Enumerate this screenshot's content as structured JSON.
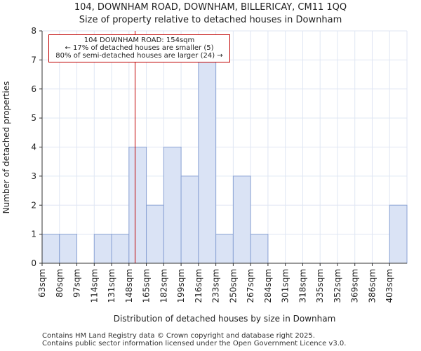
{
  "title_line1": "104, DOWNHAM ROAD, DOWNHAM, BILLERICAY, CM11 1QQ",
  "title_line2": "Size of property relative to detached houses in Downham",
  "annotation": {
    "line1": "104 DOWNHAM ROAD: 154sqm",
    "line2": "← 17% of detached houses are smaller (5)",
    "line3": "80% of semi-detached houses are larger (24) →"
  },
  "footer": {
    "line1": "Contains HM Land Registry data © Crown copyright and database right 2025.",
    "line2": "Contains public sector information licensed under the Open Government Licence v3.0."
  },
  "colors": {
    "bar_fill": "#dae3f5",
    "bar_edge": "#8aa2d4",
    "marker": "#c00000",
    "grid": "#dfe6f3"
  },
  "chart_data": {
    "type": "bar",
    "title": "Size of property relative to detached houses in Downham",
    "xlabel": "Distribution of detached houses by size in Downham",
    "ylabel": "Number of detached properties",
    "categories": [
      "63sqm",
      "80sqm",
      "97sqm",
      "114sqm",
      "131sqm",
      "148sqm",
      "165sqm",
      "182sqm",
      "199sqm",
      "216sqm",
      "233sqm",
      "250sqm",
      "267sqm",
      "284sqm",
      "301sqm",
      "318sqm",
      "335sqm",
      "352sqm",
      "369sqm",
      "386sqm",
      "403sqm"
    ],
    "bin_edges": [
      63,
      80,
      97,
      114,
      131,
      148,
      165,
      182,
      199,
      216,
      233,
      250,
      267,
      284,
      301,
      318,
      335,
      352,
      369,
      386,
      403,
      420
    ],
    "values": [
      1,
      1,
      0,
      1,
      1,
      4,
      2,
      4,
      3,
      7,
      1,
      3,
      1,
      0,
      0,
      0,
      0,
      0,
      0,
      0,
      2
    ],
    "marker_value": 154,
    "ylim": [
      0,
      8
    ],
    "yticks": [
      0,
      1,
      2,
      3,
      4,
      5,
      6,
      7,
      8
    ],
    "grid": true
  }
}
